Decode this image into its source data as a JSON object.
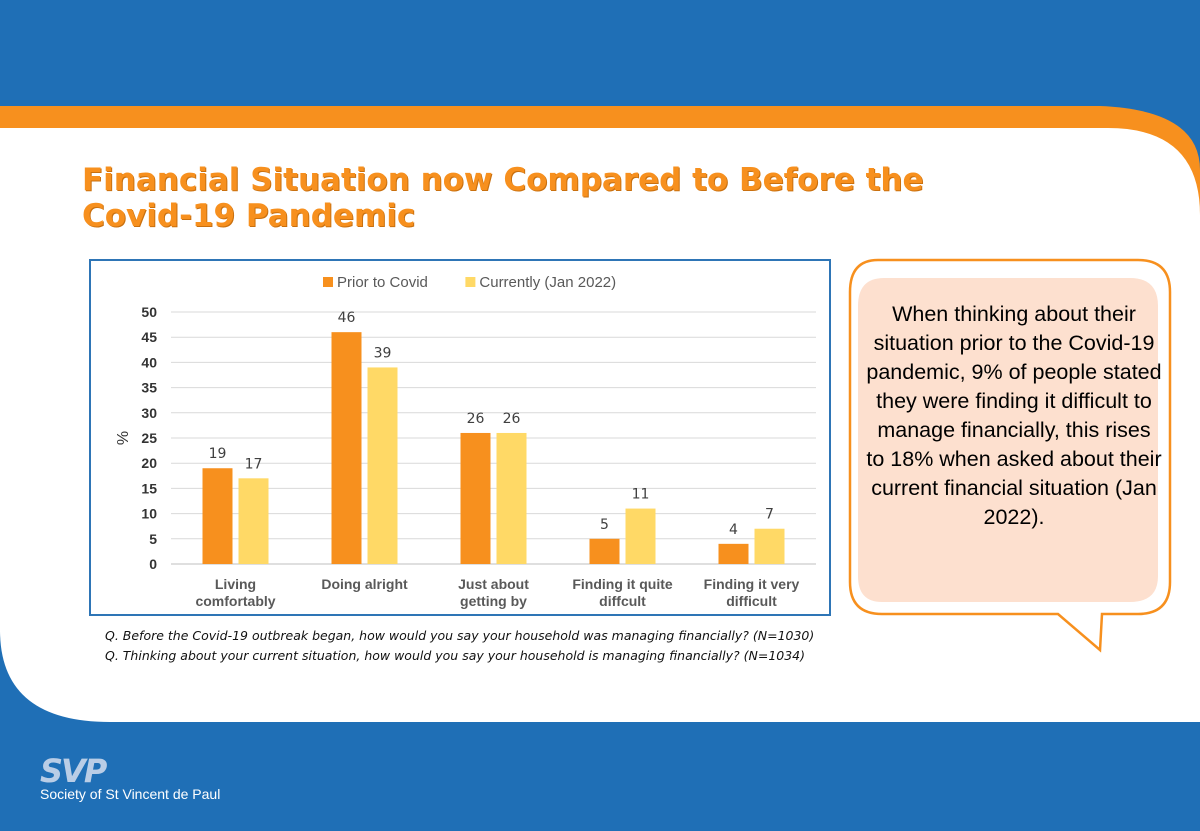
{
  "title": "Financial Situation now Compared to Before the Covid-19 Pandemic",
  "chart_data": {
    "type": "bar",
    "categories": [
      "Living\ncomfortably",
      "Doing alright",
      "Just about\ngetting by",
      "Finding it quite\ndiffcult",
      "Finding it very\ndifficult"
    ],
    "series": [
      {
        "name": "Prior to Covid",
        "values": [
          19,
          46,
          26,
          5,
          4
        ],
        "color": "#f7901e"
      },
      {
        "name": "Currently (Jan 2022)",
        "values": [
          17,
          39,
          26,
          11,
          7
        ],
        "color": "#ffd966"
      }
    ],
    "ylabel": "%",
    "ylim": [
      0,
      50
    ],
    "yticks": [
      0,
      5,
      10,
      15,
      20,
      25,
      30,
      35,
      40,
      45,
      50
    ],
    "grid": true,
    "legend": "top-center"
  },
  "notes": [
    "Q. Before the Covid-19 outbreak began, how would you say your household was managing financially? (N=1030)",
    "Q. Thinking about your current situation, how would you say your household is managing financially?  (N=1034)"
  ],
  "callout": "When thinking about their situation prior to the Covid-19 pandemic, 9% of people stated they were finding it difficult to manage financially, this rises to 18% when asked about their current financial situation (Jan 2022).",
  "logo": {
    "mark": "SVP",
    "name": "Society of St Vincent de Paul"
  },
  "colors": {
    "brand_blue": "#1f6fb6",
    "brand_orange": "#f7901e",
    "callout_fill": "#fde0cf"
  }
}
